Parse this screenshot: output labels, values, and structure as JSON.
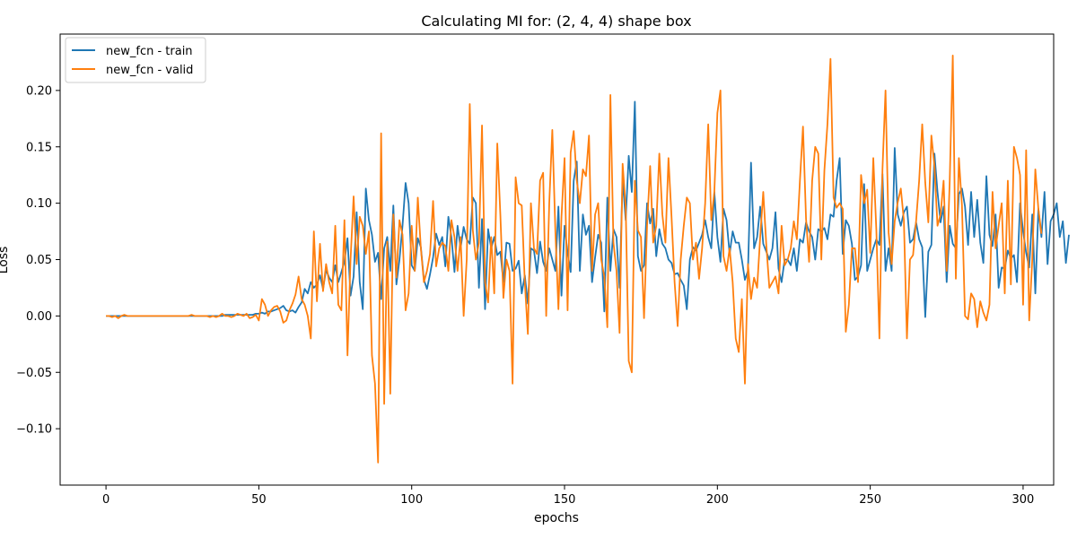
{
  "chart_data": {
    "type": "line",
    "title": "Calculating MI for: (2, 4, 4) shape box",
    "xlabel": "epochs",
    "ylabel": "Loss",
    "xlim": [
      -15,
      310
    ],
    "ylim": [
      -0.15,
      0.25
    ],
    "xticks": [
      0,
      50,
      100,
      150,
      200,
      250,
      300
    ],
    "yticks": [
      -0.1,
      -0.05,
      0.0,
      0.05,
      0.1,
      0.15,
      0.2
    ],
    "xtick_labels": [
      "0",
      "50",
      "100",
      "150",
      "200",
      "250",
      "300"
    ],
    "ytick_labels": [
      "−0.10",
      "−0.05",
      "0.00",
      "0.05",
      "0.10",
      "0.15",
      "0.20"
    ],
    "grid": false,
    "legend_position": "top-left",
    "series": [
      {
        "name": "new_fcn - train",
        "color": "#1f77b4",
        "values": [
          0.0,
          0.0,
          0.0,
          0.0,
          0.0,
          0.0,
          0.0,
          0.0,
          0.0,
          0.0,
          0.0,
          0.0,
          0.0,
          0.0,
          0.0,
          0.0,
          0.0,
          0.0,
          0.0,
          0.0,
          0.0,
          0.0,
          0.0,
          0.0,
          0.0,
          0.0,
          0.0,
          0.0,
          0.0,
          0.0,
          0.0,
          0.0,
          0.0,
          0.0,
          0.0,
          0.0,
          0.0,
          0.0,
          0.0,
          0.001,
          0.001,
          0.001,
          0.001,
          0.001,
          0.001,
          0.001,
          0.001,
          0.001,
          0.001,
          0.002,
          0.002,
          0.003,
          0.002,
          0.004,
          0.004,
          0.005,
          0.006,
          0.007,
          0.009,
          0.005,
          0.004,
          0.005,
          0.003,
          0.008,
          0.012,
          0.024,
          0.02,
          0.03,
          0.025,
          0.028,
          0.036,
          0.024,
          0.041,
          0.034,
          0.03,
          0.045,
          0.03,
          0.039,
          0.048,
          0.069,
          0.018,
          0.035,
          0.092,
          0.03,
          0.006,
          0.113,
          0.085,
          0.072,
          0.048,
          0.056,
          0.015,
          0.06,
          0.07,
          0.04,
          0.098,
          0.028,
          0.05,
          0.08,
          0.118,
          0.1,
          0.045,
          0.04,
          0.069,
          0.061,
          0.032,
          0.024,
          0.037,
          0.052,
          0.073,
          0.063,
          0.07,
          0.044,
          0.088,
          0.07,
          0.039,
          0.08,
          0.06,
          0.079,
          0.068,
          0.064,
          0.105,
          0.1,
          0.025,
          0.086,
          0.006,
          0.077,
          0.06,
          0.07,
          0.054,
          0.057,
          0.03,
          0.065,
          0.064,
          0.04,
          0.042,
          0.049,
          0.02,
          0.036,
          0.011,
          0.06,
          0.058,
          0.038,
          0.066,
          0.048,
          0.04,
          0.06,
          0.05,
          0.04,
          0.097,
          0.018,
          0.08,
          0.056,
          0.039,
          0.12,
          0.137,
          0.04,
          0.09,
          0.072,
          0.08,
          0.03,
          0.052,
          0.072,
          0.065,
          0.004,
          0.105,
          0.04,
          0.077,
          0.07,
          0.025,
          0.122,
          0.085,
          0.142,
          0.11,
          0.19,
          0.053,
          0.04,
          0.045,
          0.1,
          0.082,
          0.095,
          0.053,
          0.077,
          0.064,
          0.06,
          0.05,
          0.047,
          0.037,
          0.038,
          0.032,
          0.027,
          0.006,
          0.05,
          0.061,
          0.058,
          0.065,
          0.072,
          0.085,
          0.07,
          0.06,
          0.11,
          0.07,
          0.048,
          0.095,
          0.085,
          0.055,
          0.075,
          0.065,
          0.065,
          0.05,
          0.032,
          0.04,
          0.136,
          0.06,
          0.07,
          0.097,
          0.064,
          0.057,
          0.05,
          0.06,
          0.092,
          0.042,
          0.03,
          0.05,
          0.05,
          0.045,
          0.06,
          0.04,
          0.068,
          0.065,
          0.083,
          0.075,
          0.07,
          0.05,
          0.077,
          0.075,
          0.078,
          0.068,
          0.09,
          0.088,
          0.12,
          0.14,
          0.055,
          0.085,
          0.08,
          0.064,
          0.032,
          0.035,
          0.045,
          0.117,
          0.04,
          0.05,
          0.06,
          0.068,
          0.063,
          0.126,
          0.04,
          0.06,
          0.04,
          0.149,
          0.09,
          0.08,
          0.092,
          0.097,
          0.065,
          0.068,
          0.083,
          0.068,
          0.061,
          -0.001,
          0.057,
          0.063,
          0.144,
          0.11,
          0.083,
          0.097,
          0.03,
          0.08,
          0.064,
          0.06,
          0.108,
          0.113,
          0.097,
          0.063,
          0.11,
          0.07,
          0.103,
          0.065,
          0.047,
          0.124,
          0.072,
          0.062,
          0.09,
          0.025,
          0.043,
          0.042,
          0.058,
          0.051,
          0.054,
          0.03,
          0.1,
          0.075,
          0.056,
          0.043,
          0.09,
          0.02,
          0.095,
          0.07,
          0.11,
          0.046,
          0.084,
          0.09,
          0.1,
          0.07,
          0.084,
          0.047,
          0.072
        ]
      },
      {
        "name": "new_fcn - valid",
        "color": "#ff7f0e",
        "values": [
          0.0,
          0.0,
          -0.001,
          0.0,
          -0.002,
          0.0,
          0.001,
          0.0,
          0.0,
          0.0,
          0.0,
          0.0,
          0.0,
          0.0,
          0.0,
          0.0,
          0.0,
          0.0,
          0.0,
          0.0,
          0.0,
          0.0,
          0.0,
          0.0,
          0.0,
          0.0,
          0.0,
          0.0,
          0.001,
          0.0,
          0.0,
          0.0,
          0.0,
          0.0,
          -0.001,
          0.0,
          -0.001,
          0.0,
          0.002,
          0.0,
          0.0,
          -0.001,
          0.0,
          0.002,
          0.001,
          0.0,
          0.002,
          -0.002,
          -0.001,
          0.001,
          -0.004,
          0.015,
          0.01,
          0.0,
          0.005,
          0.008,
          0.009,
          0.004,
          -0.006,
          -0.004,
          0.005,
          0.011,
          0.019,
          0.035,
          0.015,
          0.01,
          0.0,
          -0.02,
          0.075,
          0.013,
          0.064,
          0.022,
          0.046,
          0.03,
          0.02,
          0.08,
          0.01,
          0.005,
          0.085,
          -0.035,
          0.05,
          0.106,
          0.046,
          0.088,
          0.08,
          0.055,
          0.075,
          -0.035,
          -0.06,
          -0.13,
          0.162,
          -0.078,
          0.066,
          -0.069,
          0.09,
          0.034,
          0.085,
          0.072,
          0.005,
          0.02,
          0.08,
          0.04,
          0.105,
          0.06,
          0.03,
          0.04,
          0.055,
          0.102,
          0.044,
          0.06,
          0.065,
          0.062,
          0.04,
          0.085,
          0.07,
          0.04,
          0.07,
          0.0,
          0.05,
          0.188,
          0.076,
          0.05,
          0.065,
          0.169,
          0.03,
          0.012,
          0.07,
          0.02,
          0.153,
          0.09,
          0.016,
          0.05,
          0.04,
          -0.06,
          0.123,
          0.1,
          0.098,
          0.03,
          -0.016,
          0.1,
          0.06,
          0.055,
          0.12,
          0.127,
          0.0,
          0.1,
          0.165,
          0.075,
          0.006,
          0.088,
          0.14,
          0.005,
          0.145,
          0.164,
          0.12,
          0.1,
          0.13,
          0.124,
          0.16,
          0.04,
          0.09,
          0.1,
          0.05,
          0.035,
          -0.01,
          0.196,
          0.065,
          0.04,
          -0.015,
          0.135,
          0.097,
          -0.04,
          -0.05,
          0.12,
          0.076,
          0.07,
          -0.002,
          0.08,
          0.133,
          0.065,
          0.08,
          0.144,
          0.09,
          0.065,
          0.14,
          0.088,
          0.03,
          -0.009,
          0.05,
          0.08,
          0.105,
          0.1,
          0.05,
          0.065,
          0.033,
          0.06,
          0.1,
          0.17,
          0.085,
          0.11,
          0.18,
          0.2,
          0.053,
          0.04,
          0.06,
          0.03,
          -0.02,
          -0.032,
          0.015,
          -0.06,
          0.046,
          0.015,
          0.034,
          0.025,
          0.07,
          0.11,
          0.063,
          0.025,
          0.03,
          0.035,
          0.02,
          0.08,
          0.045,
          0.05,
          0.06,
          0.084,
          0.068,
          0.12,
          0.168,
          0.086,
          0.048,
          0.12,
          0.15,
          0.144,
          0.05,
          0.129,
          0.17,
          0.228,
          0.105,
          0.096,
          0.1,
          0.095,
          -0.014,
          0.01,
          0.06,
          0.06,
          0.03,
          0.125,
          0.1,
          0.112,
          0.056,
          0.14,
          0.076,
          -0.02,
          0.13,
          0.2,
          0.074,
          0.046,
          0.084,
          0.101,
          0.113,
          0.085,
          -0.02,
          0.05,
          0.054,
          0.084,
          0.12,
          0.17,
          0.118,
          0.083,
          0.16,
          0.133,
          0.08,
          0.09,
          0.12,
          0.04,
          0.12,
          0.231,
          0.033,
          0.14,
          0.098,
          0.0,
          -0.003,
          0.02,
          0.015,
          -0.01,
          0.013,
          0.003,
          -0.004,
          0.01,
          0.11,
          0.06,
          0.08,
          0.1,
          0.02,
          0.12,
          0.028,
          0.15,
          0.14,
          0.125,
          0.01,
          0.147,
          -0.004,
          0.05,
          0.13,
          0.095,
          0.073
        ]
      }
    ]
  }
}
